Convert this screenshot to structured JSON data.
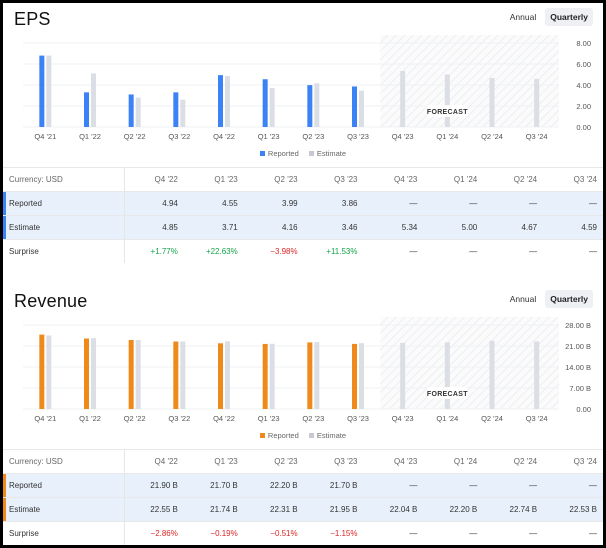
{
  "colors": {
    "eps_reported": "#3b82f6",
    "revenue_reported": "#ef8a1a",
    "estimate": "#dcdee5",
    "grid": "#e5e7eb",
    "positive": "#16a34a",
    "negative": "#dc2626",
    "highlight_row": "#e8f1fb"
  },
  "eps": {
    "title": "EPS",
    "toggle": {
      "annual": "Annual",
      "quarterly": "Quarterly",
      "selected": "quarterly"
    },
    "forecast_label": "FORECAST",
    "legend": {
      "reported": "Reported",
      "estimate": "Estimate"
    },
    "table": {
      "currency": "Currency: USD",
      "headers": [
        "Q4 '22",
        "Q1 '23",
        "Q2 '23",
        "Q3 '23",
        "Q4 '23",
        "Q1 '24",
        "Q2 '24",
        "Q3 '24"
      ],
      "rows": [
        {
          "label": "Reported",
          "highlight": true,
          "cells": [
            "4.94",
            "4.55",
            "3.99",
            "3.86",
            "—",
            "—",
            "—",
            "—"
          ]
        },
        {
          "label": "Estimate",
          "highlight": true,
          "cells": [
            "4.85",
            "3.71",
            "4.16",
            "3.46",
            "5.34",
            "5.00",
            "4.67",
            "4.59"
          ]
        },
        {
          "label": "Surprise",
          "highlight": false,
          "cells": [
            "+1.77%",
            "+22.63%",
            "−3.98%",
            "+11.53%",
            "—",
            "—",
            "—",
            "—"
          ]
        }
      ]
    }
  },
  "revenue": {
    "title": "Revenue",
    "toggle": {
      "annual": "Annual",
      "quarterly": "Quarterly",
      "selected": "quarterly"
    },
    "forecast_label": "FORECAST",
    "legend": {
      "reported": "Reported",
      "estimate": "Estimate"
    },
    "table": {
      "currency": "Currency: USD",
      "headers": [
        "Q4 '22",
        "Q1 '23",
        "Q2 '23",
        "Q3 '23",
        "Q4 '23",
        "Q1 '24",
        "Q2 '24",
        "Q3 '24"
      ],
      "rows": [
        {
          "label": "Reported",
          "highlight": true,
          "cells": [
            "21.90 B",
            "21.70 B",
            "22.20 B",
            "21.70 B",
            "—",
            "—",
            "—",
            "—"
          ]
        },
        {
          "label": "Estimate",
          "highlight": true,
          "cells": [
            "22.55 B",
            "21.74 B",
            "22.31 B",
            "21.95 B",
            "22.04 B",
            "22.20 B",
            "22.74 B",
            "22.53 B"
          ]
        },
        {
          "label": "Surprise",
          "highlight": false,
          "cells": [
            "−2.86%",
            "−0.19%",
            "−0.51%",
            "−1.15%",
            "—",
            "—",
            "—",
            "—"
          ]
        }
      ]
    }
  },
  "chart_data": [
    {
      "type": "bar",
      "title": "EPS",
      "categories": [
        "Q4 '21",
        "Q1 '22",
        "Q2 '22",
        "Q3 '22",
        "Q4 '22",
        "Q1 '23",
        "Q2 '23",
        "Q3 '23",
        "Q4 '23",
        "Q1 '24",
        "Q2 '24",
        "Q3 '24"
      ],
      "series": [
        {
          "name": "Reported",
          "values": [
            6.8,
            3.3,
            3.1,
            3.3,
            4.94,
            4.55,
            3.99,
            3.86,
            null,
            null,
            null,
            null
          ]
        },
        {
          "name": "Estimate",
          "values": [
            6.8,
            5.1,
            2.8,
            2.6,
            4.85,
            3.71,
            4.16,
            3.46,
            5.34,
            5.0,
            4.67,
            4.59
          ]
        }
      ],
      "forecast_start_index": 8,
      "yticks": [
        "0.00",
        "2.00",
        "4.00",
        "6.00",
        "8.00"
      ],
      "ylim": [
        0,
        8
      ],
      "legend": "bottom-center"
    },
    {
      "type": "bar",
      "title": "Revenue",
      "categories": [
        "Q4 '21",
        "Q1 '22",
        "Q2 '22",
        "Q3 '22",
        "Q4 '22",
        "Q1 '23",
        "Q2 '23",
        "Q3 '23",
        "Q4 '23",
        "Q1 '24",
        "Q2 '24",
        "Q3 '24"
      ],
      "series": [
        {
          "name": "Reported",
          "values": [
            24.8,
            23.5,
            23.0,
            22.5,
            21.9,
            21.7,
            22.2,
            21.7,
            null,
            null,
            null,
            null
          ]
        },
        {
          "name": "Estimate",
          "values": [
            24.5,
            23.6,
            23.0,
            22.5,
            22.55,
            21.74,
            22.31,
            21.95,
            22.04,
            22.2,
            22.74,
            22.53
          ]
        }
      ],
      "forecast_start_index": 8,
      "yticks": [
        "0.00",
        "7.00 B",
        "14.00 B",
        "21.00 B",
        "28.00 B"
      ],
      "ylim": [
        0,
        28
      ],
      "legend": "bottom-center"
    }
  ]
}
